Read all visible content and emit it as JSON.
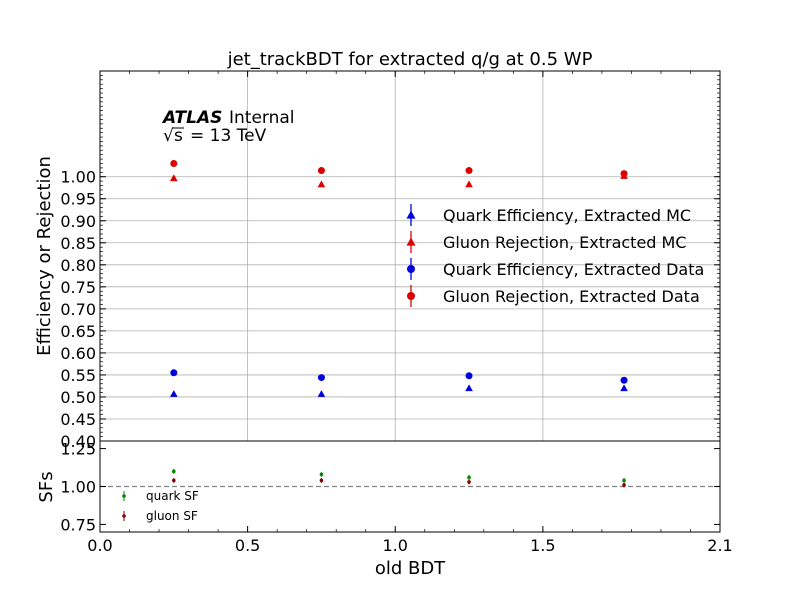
{
  "chart_data": {
    "type": "scatter",
    "title": "jet_trackBDT for extracted q/g at 0.5 WP",
    "xlabel": "old BDT",
    "ylabel": "Efficiency or Rejection",
    "ylabel_ratio": "SFs",
    "xlim": [
      0.0,
      2.1
    ],
    "ylim": [
      0.4,
      1.24
    ],
    "ylim_ratio": [
      0.7,
      1.3
    ],
    "x_ticks": [
      "0.0",
      "0.5",
      "1.0",
      "1.5",
      "2.1"
    ],
    "x_tick_values": [
      0.0,
      0.5,
      1.0,
      1.5,
      2.1
    ],
    "y_ticks": [
      "0.40",
      "0.45",
      "0.50",
      "0.55",
      "0.60",
      "0.65",
      "0.70",
      "0.75",
      "0.80",
      "0.85",
      "0.90",
      "0.95",
      "1.00"
    ],
    "y_tick_values": [
      0.4,
      0.45,
      0.5,
      0.55,
      0.6,
      0.65,
      0.7,
      0.75,
      0.8,
      0.85,
      0.9,
      0.95,
      1.0
    ],
    "y_ticks_ratio": [
      "0.75",
      "1.00",
      "1.25"
    ],
    "y_tick_values_ratio": [
      0.75,
      1.0,
      1.25
    ],
    "grid": true,
    "legend_position": "center-right",
    "ratio_legend_position": "lower-left",
    "reference_line": 1.0,
    "label_atlas": "ATLAS",
    "label_internal": "Internal",
    "label_energy_value": "= 13 TeV",
    "x": [
      0.25,
      0.75,
      1.25,
      1.775
    ],
    "series": [
      {
        "name": "Quark Efficiency, Extracted MC",
        "marker": "triangle",
        "color": "#0000dd",
        "values": [
          0.507,
          0.507,
          0.52,
          0.52
        ]
      },
      {
        "name": "Gluon Rejection, Extracted MC",
        "marker": "triangle",
        "color": "#dd0000",
        "values": [
          0.997,
          0.983,
          0.983,
          1.002
        ]
      },
      {
        "name": "Quark Efficiency, Extracted Data",
        "marker": "circle",
        "color": "#0000dd",
        "values": [
          0.555,
          0.544,
          0.548,
          0.538
        ]
      },
      {
        "name": "Gluon Rejection, Extracted Data",
        "marker": "circle",
        "color": "#dd0000",
        "values": [
          1.03,
          1.014,
          1.014,
          1.007
        ]
      }
    ],
    "ratio_series": [
      {
        "name": "quark SF",
        "color": "#008800",
        "values": [
          1.1,
          1.08,
          1.06,
          1.04
        ]
      },
      {
        "name": "gluon SF",
        "color": "#880000",
        "values": [
          1.04,
          1.04,
          1.03,
          1.01
        ]
      }
    ]
  }
}
